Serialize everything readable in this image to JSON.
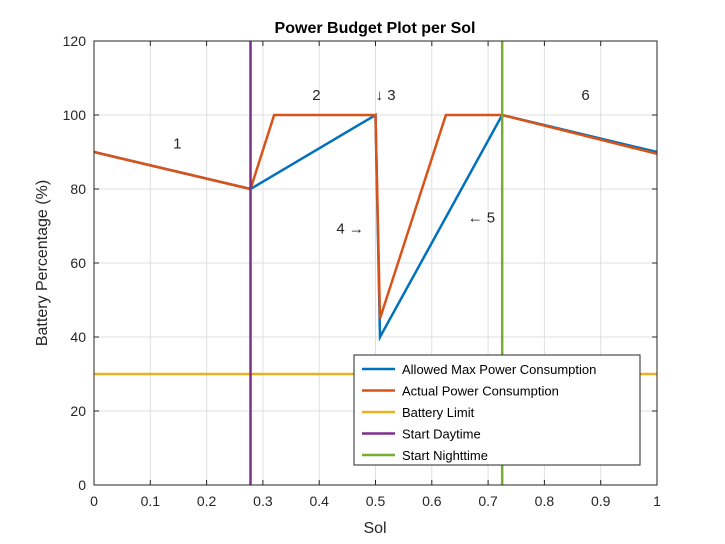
{
  "chart_data": {
    "type": "line",
    "title": "Power Budget Plot per Sol",
    "xlabel": "Sol",
    "ylabel": "Battery Percentage (%)",
    "xlim": [
      0,
      1
    ],
    "ylim": [
      0,
      120
    ],
    "xticks": [
      0,
      0.1,
      0.2,
      0.3,
      0.4,
      0.5,
      0.6,
      0.7,
      0.8,
      0.9,
      1
    ],
    "xtick_labels": [
      "0",
      "0.1",
      "0.2",
      "0.3",
      "0.4",
      "0.5",
      "0.6",
      "0.7",
      "0.8",
      "0.9",
      "1"
    ],
    "yticks": [
      0,
      20,
      40,
      60,
      80,
      100,
      120
    ],
    "ytick_labels": [
      "0",
      "20",
      "40",
      "60",
      "80",
      "100",
      "120"
    ],
    "grid": true,
    "legend_position": "bottom-right",
    "series": [
      {
        "name": "Allowed Max Power Consumption",
        "color": "#0072BD",
        "x": [
          0,
          0.278,
          0.5,
          0.508,
          0.725,
          1
        ],
        "y": [
          90,
          80,
          100,
          40,
          100,
          90
        ]
      },
      {
        "name": "Actual Power Consumption",
        "color": "#D95319",
        "x": [
          0,
          0.278,
          0.32,
          0.5,
          0.508,
          0.625,
          0.725,
          1
        ],
        "y": [
          90,
          80,
          100,
          100,
          45,
          100,
          100,
          89.5
        ]
      },
      {
        "name": "Battery Limit",
        "color": "#EDB120",
        "x": [
          0,
          1
        ],
        "y": [
          30,
          30
        ]
      },
      {
        "name": "Start Daytime",
        "color": "#7E2F8E",
        "x": [
          0.278,
          0.278
        ],
        "y": [
          0,
          120
        ]
      },
      {
        "name": "Start Nighttime",
        "color": "#77AC30",
        "x": [
          0.725,
          0.725
        ],
        "y": [
          0,
          120
        ]
      }
    ],
    "annotations": [
      {
        "text": "1",
        "x": 0.148,
        "y": 91
      },
      {
        "text": "2",
        "x": 0.395,
        "y": 104
      },
      {
        "text": "↓ 3",
        "x": 0.518,
        "y": 104
      },
      {
        "text": "4 →",
        "x": 0.455,
        "y": 68
      },
      {
        "text": "← 5",
        "x": 0.688,
        "y": 71
      },
      {
        "text": "6",
        "x": 0.873,
        "y": 104
      }
    ]
  }
}
